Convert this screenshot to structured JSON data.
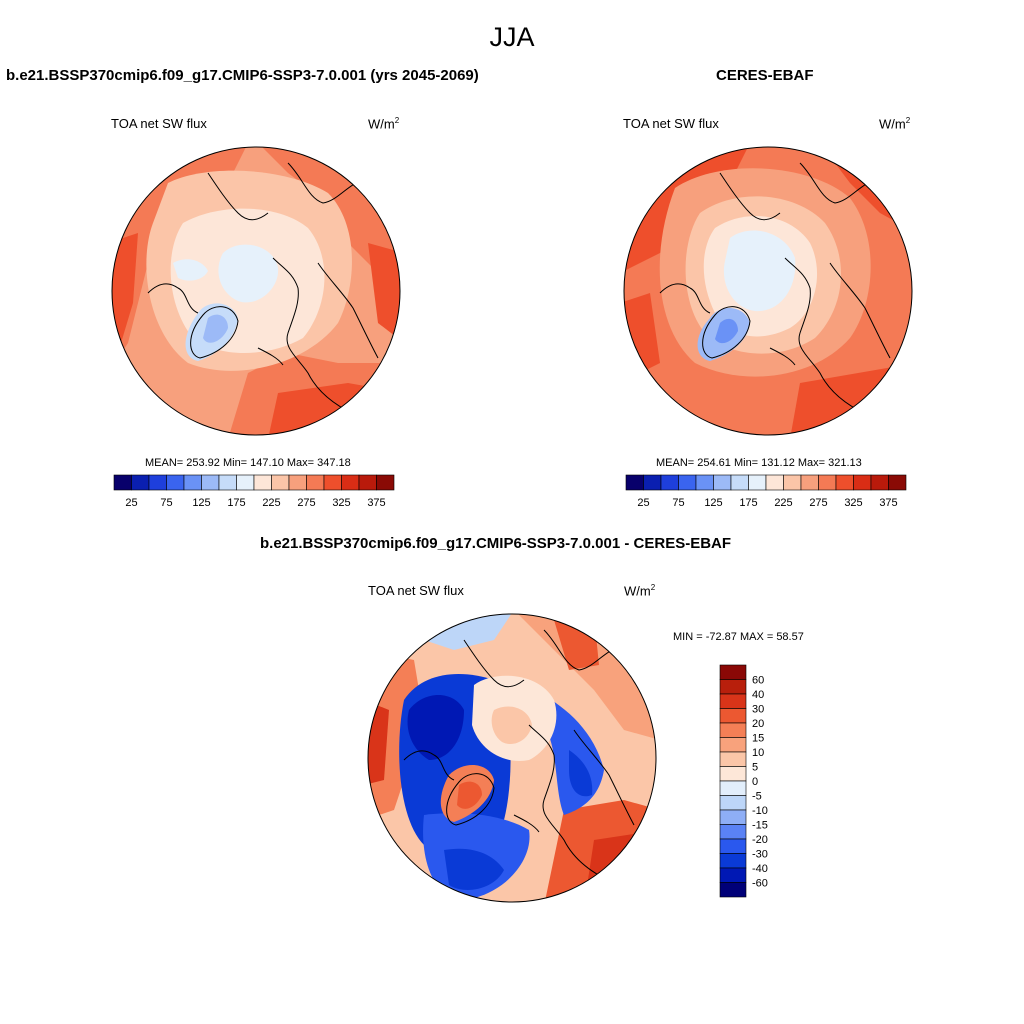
{
  "title": "JJA",
  "panels": [
    {
      "title": "b.e21.BSSP370cmip6.f09_g17.CMIP6-SSP3-7.0.001 (yrs 2045-2069)",
      "variable": "TOA net SW flux",
      "units_base": "W/m",
      "units_exp": "2",
      "stats": "MEAN= 253.92  Min= 147.10  Max= 347.18"
    },
    {
      "title": "CERES-EBAF",
      "variable": "TOA net SW flux",
      "units_base": "W/m",
      "units_exp": "2",
      "stats": "MEAN= 254.61  Min= 131.12  Max= 321.13"
    },
    {
      "title": "b.e21.BSSP370cmip6.f09_g17.CMIP6-SSP3-7.0.001 - CERES-EBAF",
      "variable": "TOA net SW flux",
      "units_base": "W/m",
      "units_exp": "2",
      "stats": "MIN = -72.87 MAX =  58.57"
    }
  ],
  "colorbar_abs": {
    "colors": [
      "#08006b",
      "#0a1fb0",
      "#1e3fdc",
      "#3a64ef",
      "#6a92f6",
      "#9cbaf7",
      "#c6dcf9",
      "#e6f1fb",
      "#fde6d8",
      "#fbc5a8",
      "#f7a07d",
      "#f47a55",
      "#ee4f2c",
      "#d92d15",
      "#b91a0b",
      "#8a0a05"
    ],
    "labels": [
      "25",
      "75",
      "125",
      "175",
      "225",
      "275",
      "325",
      "375"
    ]
  },
  "colorbar_diff": {
    "colors": [
      "#000078",
      "#0018b4",
      "#0a3ad6",
      "#2a58ee",
      "#5a82f5",
      "#8eaef6",
      "#bdd6f8",
      "#e2eefb",
      "#fde7d8",
      "#fbc6a8",
      "#f8a27c",
      "#f47f56",
      "#ec5831",
      "#d93419",
      "#b81f0c",
      "#8a0806"
    ],
    "labels": [
      "60",
      "40",
      "30",
      "20",
      "15",
      "10",
      "5",
      "0",
      "-5",
      "-10",
      "-15",
      "-20",
      "-30",
      "-40",
      "-60"
    ]
  }
}
